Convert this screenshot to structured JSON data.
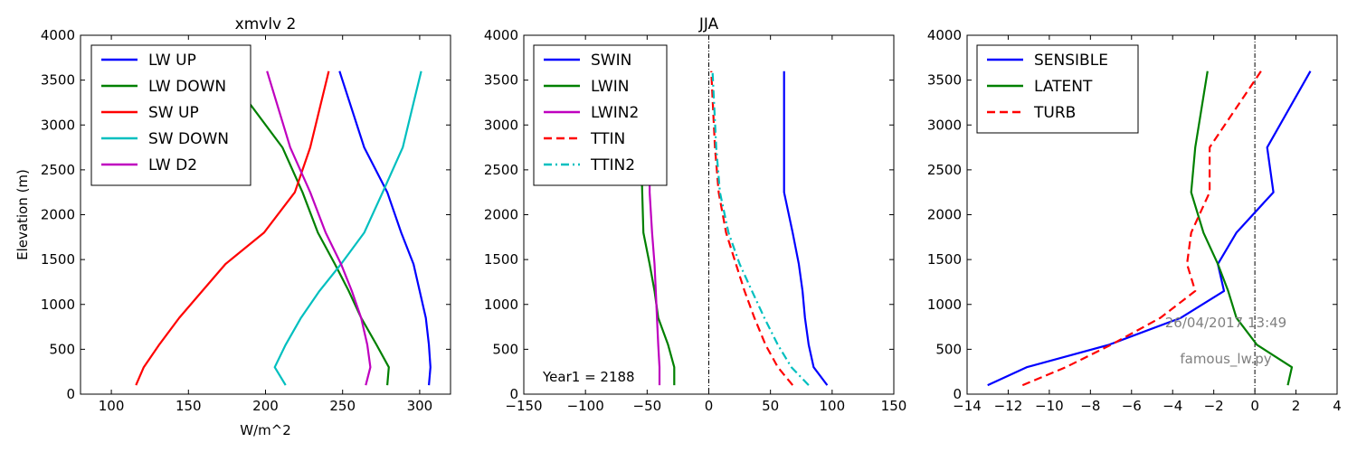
{
  "figure": {
    "watermark_date": "26/04/2017 13:49",
    "watermark_script": "famous_lw.py",
    "colors": {
      "blue": "#0000ff",
      "green": "#008000",
      "red": "#ff0000",
      "cyan": "#00bfbf",
      "magenta": "#bf00bf",
      "watermark": "#808080"
    }
  },
  "chart_data": [
    {
      "type": "line",
      "title": "xmvlv 2",
      "xlabel": "W/m^2",
      "ylabel": "Elevation (m)",
      "xlim": [
        80,
        320
      ],
      "ylim": [
        0,
        4000
      ],
      "xticks": [
        100,
        150,
        200,
        250,
        300
      ],
      "xtick_labels": [
        "100",
        "150",
        "200",
        "250",
        "300"
      ],
      "yticks": [
        0,
        500,
        1000,
        1500,
        2000,
        2500,
        3000,
        3500,
        4000
      ],
      "ytick_labels": [
        "0",
        "500",
        "1000",
        "1500",
        "2000",
        "2500",
        "3000",
        "3500",
        "4000"
      ],
      "legend_position": "top-left",
      "annotation": "",
      "elevation": [
        100,
        300,
        550,
        850,
        1150,
        1450,
        1800,
        2250,
        2750,
        3600
      ],
      "series": [
        {
          "name": "LW UP",
          "color": "#0000ff",
          "style": "solid",
          "values": [
            306,
            307,
            306,
            304,
            300,
            296,
            288,
            279,
            264,
            248
          ]
        },
        {
          "name": "LW DOWN",
          "color": "#008000",
          "style": "solid",
          "values": [
            279,
            280,
            272,
            262,
            254,
            245,
            234,
            224,
            211,
            174
          ]
        },
        {
          "name": "SW UP",
          "color": "#ff0000",
          "style": "solid",
          "values": [
            116,
            121,
            131,
            144,
            159,
            174,
            199,
            219,
            229,
            241
          ]
        },
        {
          "name": "SW DOWN",
          "color": "#00bfbf",
          "style": "solid",
          "values": [
            213,
            206,
            213,
            223,
            235,
            249,
            264,
            276,
            289,
            301
          ]
        },
        {
          "name": "LW D2",
          "color": "#bf00bf",
          "style": "solid",
          "values": [
            265,
            268,
            266,
            262,
            256,
            249,
            239,
            229,
            216,
            201
          ]
        }
      ]
    },
    {
      "type": "line",
      "title": "JJA",
      "xlabel": "",
      "ylabel": "",
      "xlim": [
        -150,
        150
      ],
      "ylim": [
        0,
        4000
      ],
      "xticks": [
        -150,
        -100,
        -50,
        0,
        50,
        100,
        150
      ],
      "xtick_labels": [
        "−150",
        "−100",
        "−50",
        "0",
        "50",
        "100",
        "150"
      ],
      "yticks": [
        0,
        500,
        1000,
        1500,
        2000,
        2500,
        3000,
        3500,
        4000
      ],
      "ytick_labels": [
        "0",
        "500",
        "1000",
        "1500",
        "2000",
        "2500",
        "3000",
        "3500",
        "4000"
      ],
      "vline_x": 0,
      "legend_position": "top-left",
      "annotation": "Year1 = 2188",
      "elevation": [
        100,
        300,
        550,
        850,
        1150,
        1450,
        1800,
        2250,
        2750,
        3600
      ],
      "series": [
        {
          "name": "SWIN",
          "color": "#0000ff",
          "style": "solid",
          "values": [
            96,
            85,
            81,
            78,
            76,
            73,
            68,
            61,
            61,
            61
          ]
        },
        {
          "name": "LWIN",
          "color": "#008000",
          "style": "solid",
          "values": [
            -28,
            -28,
            -33,
            -41,
            -44,
            -48,
            -53,
            -54,
            -55,
            -55
          ]
        },
        {
          "name": "LWIN2",
          "color": "#bf00bf",
          "style": "solid",
          "values": [
            -40,
            -40,
            -41,
            -42,
            -43,
            -44,
            -46,
            -48,
            -48,
            -48
          ]
        },
        {
          "name": "TTIN",
          "color": "#ff0000",
          "style": "dashed",
          "values": [
            68,
            56,
            46,
            37,
            29,
            22,
            14,
            8,
            5,
            2
          ]
        },
        {
          "name": "TTIN2",
          "color": "#00bfbf",
          "style": "dashdot",
          "values": [
            81,
            67,
            56,
            45,
            35,
            25,
            16,
            9,
            6,
            3
          ]
        }
      ]
    },
    {
      "type": "line",
      "title": "",
      "xlabel": "",
      "ylabel": "",
      "xlim": [
        -14,
        4
      ],
      "ylim": [
        0,
        4000
      ],
      "xticks": [
        -14,
        -12,
        -10,
        -8,
        -6,
        -4,
        -2,
        0,
        2,
        4
      ],
      "xtick_labels": [
        "−14",
        "−12",
        "−10",
        "−8",
        "−6",
        "−4",
        "−2",
        "0",
        "2",
        "4"
      ],
      "yticks": [
        0,
        500,
        1000,
        1500,
        2000,
        2500,
        3000,
        3500,
        4000
      ],
      "ytick_labels": [
        "0",
        "500",
        "1000",
        "1500",
        "2000",
        "2500",
        "3000",
        "3500",
        "4000"
      ],
      "vline_x": 0,
      "legend_position": "top-left",
      "annotation": "",
      "elevation": [
        100,
        300,
        550,
        850,
        1150,
        1450,
        1800,
        2250,
        2750,
        3600
      ],
      "series": [
        {
          "name": "SENSIBLE",
          "color": "#0000ff",
          "style": "solid",
          "values": [
            -13,
            -11.1,
            -7.1,
            -3.6,
            -1.5,
            -1.8,
            -0.9,
            0.9,
            0.6,
            2.7
          ]
        },
        {
          "name": "LATENT",
          "color": "#008000",
          "style": "solid",
          "values": [
            1.6,
            1.8,
            0.1,
            -0.9,
            -1.3,
            -1.8,
            -2.5,
            -3.1,
            -2.9,
            -2.3
          ]
        },
        {
          "name": "TURB",
          "color": "#ff0000",
          "style": "dashed",
          "values": [
            -11.3,
            -9.2,
            -7,
            -4.6,
            -2.9,
            -3.3,
            -3.1,
            -2.2,
            -2.2,
            0.3
          ]
        }
      ]
    }
  ]
}
